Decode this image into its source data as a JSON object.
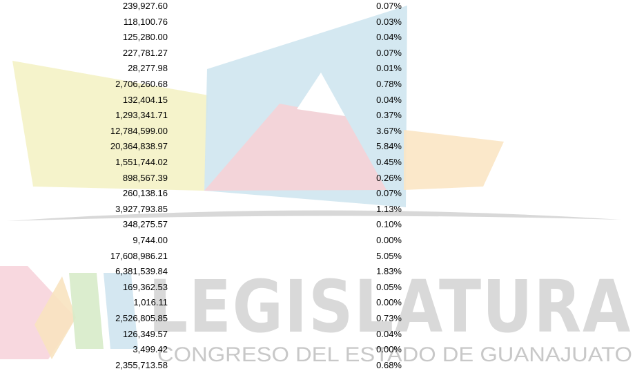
{
  "watermark": {
    "title": "LEGISLATURA",
    "subtitle": "CONGRESO DEL ESTADO DE GUANAJUATO"
  },
  "table": {
    "rows": [
      [
        "239,927.60",
        "0.07%"
      ],
      [
        "118,100.76",
        "0.03%"
      ],
      [
        "125,280.00",
        "0.04%"
      ],
      [
        "227,781.27",
        "0.07%"
      ],
      [
        "28,277.98",
        "0.01%"
      ],
      [
        "2,706,260.68",
        "0.78%"
      ],
      [
        "132,404.15",
        "0.04%"
      ],
      [
        "1,293,341.71",
        "0.37%"
      ],
      [
        "12,784,599.00",
        "3.67%"
      ],
      [
        "20,364,838.97",
        "5.84%"
      ],
      [
        "1,551,744.02",
        "0.45%"
      ],
      [
        "898,567.39",
        "0.26%"
      ],
      [
        "260,138.16",
        "0.07%"
      ],
      [
        "3,927,793.85",
        "1.13%"
      ],
      [
        "348,275.57",
        "0.10%"
      ],
      [
        "9,744.00",
        "0.00%"
      ],
      [
        "17,608,986.21",
        "5.05%"
      ],
      [
        "6,381,539.84",
        "1.83%"
      ],
      [
        "169,362.53",
        "0.05%"
      ],
      [
        "1,016.11",
        "0.00%"
      ],
      [
        "2,526,805.85",
        "0.73%"
      ],
      [
        "126,349.57",
        "0.04%"
      ],
      [
        "3,499.42",
        "0.00%"
      ],
      [
        "2,355,713.58",
        "0.68%"
      ]
    ]
  }
}
